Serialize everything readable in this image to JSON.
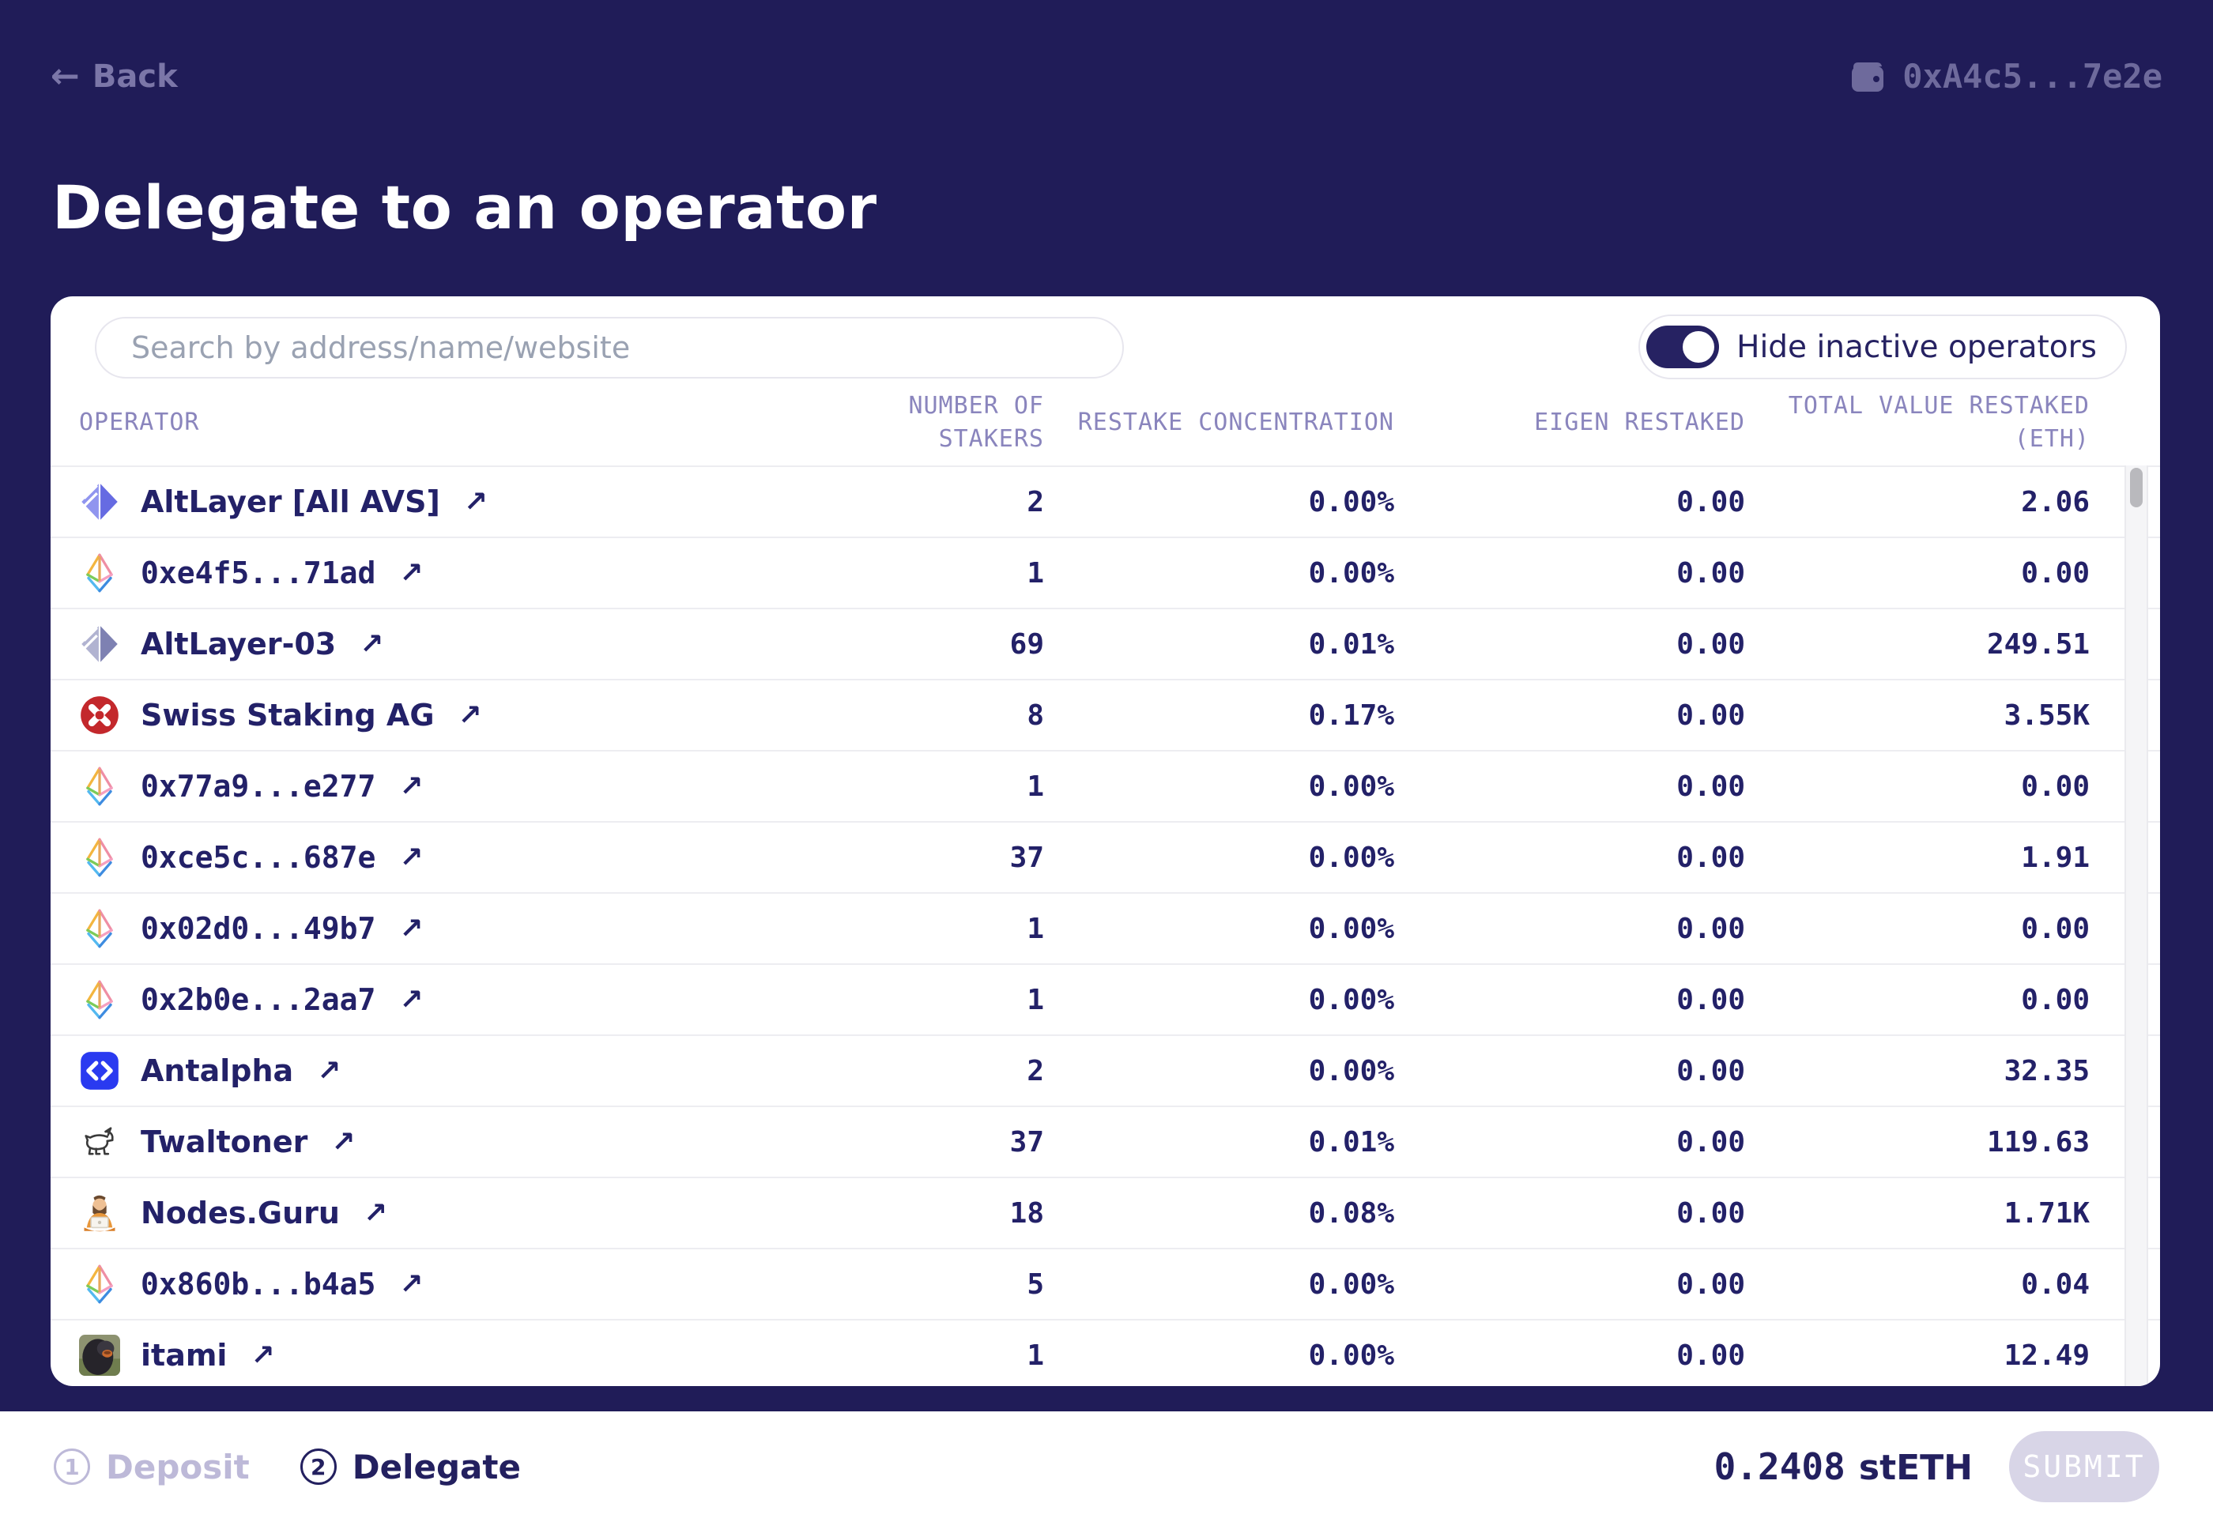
{
  "header": {
    "back_label": "Back",
    "wallet_address": "0xA4c5...7e2e"
  },
  "page_title": "Delegate to an operator",
  "panel": {
    "search_placeholder": "Search by address/name/website",
    "toggle_label": "Hide inactive operators",
    "toggle_on": true,
    "columns": [
      "OPERATOR",
      "NUMBER OF STAKERS",
      "RESTAKE CONCENTRATION",
      "EIGEN RESTAKED",
      "TOTAL VALUE RESTAKED\n(ETH)"
    ],
    "rows": [
      {
        "name": "AltLayer [All AVS]",
        "icon": "altlayer-icon",
        "stakers": "2",
        "concentration": "0.00%",
        "eigen": "0.00",
        "total": "2.06"
      },
      {
        "name": "0xe4f5...71ad",
        "icon": "eth-diamond-icon",
        "stakers": "1",
        "concentration": "0.00%",
        "eigen": "0.00",
        "total": "0.00"
      },
      {
        "name": "AltLayer-03",
        "icon": "altlayer-muted-icon",
        "stakers": "69",
        "concentration": "0.01%",
        "eigen": "0.00",
        "total": "249.51"
      },
      {
        "name": "Swiss Staking AG",
        "icon": "swiss-staking-icon",
        "stakers": "8",
        "concentration": "0.17%",
        "eigen": "0.00",
        "total": "3.55K"
      },
      {
        "name": "0x77a9...e277",
        "icon": "eth-diamond-icon",
        "stakers": "1",
        "concentration": "0.00%",
        "eigen": "0.00",
        "total": "0.00"
      },
      {
        "name": "0xce5c...687e",
        "icon": "eth-diamond-icon",
        "stakers": "37",
        "concentration": "0.00%",
        "eigen": "0.00",
        "total": "1.91"
      },
      {
        "name": "0x02d0...49b7",
        "icon": "eth-diamond-icon",
        "stakers": "1",
        "concentration": "0.00%",
        "eigen": "0.00",
        "total": "0.00"
      },
      {
        "name": "0x2b0e...2aa7",
        "icon": "eth-diamond-icon",
        "stakers": "1",
        "concentration": "0.00%",
        "eigen": "0.00",
        "total": "0.00"
      },
      {
        "name": "Antalpha",
        "icon": "antalpha-icon",
        "stakers": "2",
        "concentration": "0.00%",
        "eigen": "0.00",
        "total": "32.35"
      },
      {
        "name": "Twaltoner",
        "icon": "twaltoner-icon",
        "stakers": "37",
        "concentration": "0.01%",
        "eigen": "0.00",
        "total": "119.63"
      },
      {
        "name": "Nodes.Guru",
        "icon": "nodes-guru-icon",
        "stakers": "18",
        "concentration": "0.08%",
        "eigen": "0.00",
        "total": "1.71K"
      },
      {
        "name": "0x860b...b4a5",
        "icon": "eth-diamond-icon",
        "stakers": "5",
        "concentration": "0.00%",
        "eigen": "0.00",
        "total": "0.04"
      },
      {
        "name": "itami",
        "icon": "itami-avatar",
        "stakers": "1",
        "concentration": "0.00%",
        "eigen": "0.00",
        "total": "12.49"
      }
    ]
  },
  "footer": {
    "steps": [
      {
        "number": "1",
        "label": "Deposit",
        "active": false
      },
      {
        "number": "2",
        "label": "Delegate",
        "active": true
      }
    ],
    "balance_amount": "0.2408",
    "balance_unit": "stETH",
    "submit_label": "SUBMIT"
  },
  "colors": {
    "page_bg": "#201c58",
    "card_bg": "#ffffff",
    "text_navy": "#232168",
    "muted_lavender": "#7b76a8",
    "wallet_lavender": "#6e6a9c",
    "header_purple": "#8a85bd",
    "inactive_step": "#bdb9d8",
    "toggle_navy": "#262262",
    "submit_bg": "#d8d5e7",
    "swiss_red": "#c3282c",
    "antalpha_blue": "#2a3af0",
    "altlayer_purple": "#666be2"
  }
}
